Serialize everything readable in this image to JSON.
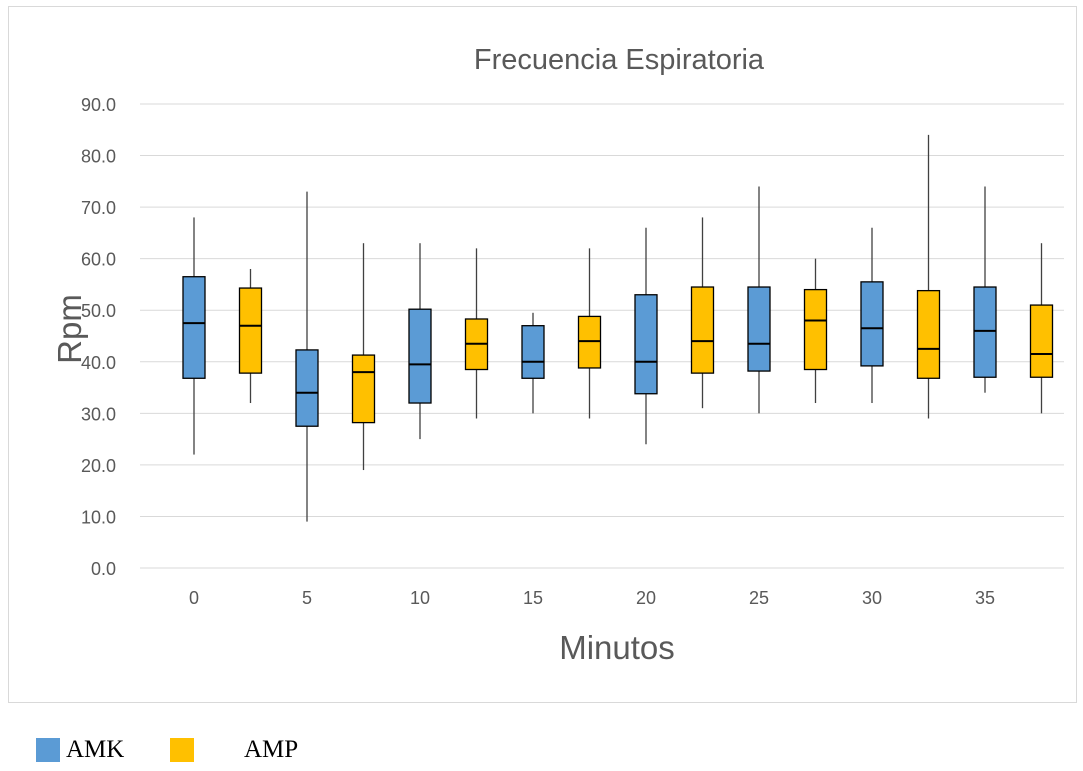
{
  "chart_data": {
    "type": "boxplot",
    "title": "Frecuencia Espiratoria",
    "xlabel": "Minutos",
    "ylabel": "Rpm",
    "ylim": [
      0,
      90
    ],
    "yticks": [
      "0.0",
      "10.0",
      "20.0",
      "30.0",
      "40.0",
      "50.0",
      "60.0",
      "70.0",
      "80.0",
      "90.0"
    ],
    "xticks": [
      "0",
      "5",
      "10",
      "15",
      "20",
      "25",
      "30",
      "35"
    ],
    "grid": "horizontal",
    "legend_position": "bottom-left",
    "series": [
      {
        "name": "AMK",
        "color": "#5b9bd5",
        "boxes": [
          {
            "x": "0",
            "min": 22,
            "q1": 36.8,
            "median": 47.5,
            "q3": 56.5,
            "max": 68
          },
          {
            "x": "5",
            "min": 9,
            "q1": 27.5,
            "median": 34,
            "q3": 42.3,
            "max": 73
          },
          {
            "x": "10",
            "min": 25,
            "q1": 32,
            "median": 39.5,
            "q3": 50.2,
            "max": 63
          },
          {
            "x": "15",
            "min": 30,
            "q1": 36.8,
            "median": 40,
            "q3": 47,
            "max": 49.5
          },
          {
            "x": "20",
            "min": 24,
            "q1": 33.8,
            "median": 40,
            "q3": 53,
            "max": 66
          },
          {
            "x": "25",
            "min": 30,
            "q1": 38.2,
            "median": 43.5,
            "q3": 54.5,
            "max": 74
          },
          {
            "x": "30",
            "min": 32,
            "q1": 39.2,
            "median": 46.5,
            "q3": 55.5,
            "max": 66
          },
          {
            "x": "35",
            "min": 34,
            "q1": 37,
            "median": 46,
            "q3": 54.5,
            "max": 74
          }
        ]
      },
      {
        "name": "AMP",
        "color": "#ffc000",
        "boxes": [
          {
            "x": "0",
            "min": 32,
            "q1": 37.8,
            "median": 47,
            "q3": 54.3,
            "max": 58
          },
          {
            "x": "5",
            "min": 19,
            "q1": 28.2,
            "median": 38,
            "q3": 41.3,
            "max": 63
          },
          {
            "x": "10",
            "min": 29,
            "q1": 38.5,
            "median": 43.5,
            "q3": 48.3,
            "max": 62
          },
          {
            "x": "15",
            "min": 29,
            "q1": 38.8,
            "median": 44,
            "q3": 48.8,
            "max": 62
          },
          {
            "x": "20",
            "min": 31,
            "q1": 37.8,
            "median": 44,
            "q3": 54.5,
            "max": 68
          },
          {
            "x": "25",
            "min": 32,
            "q1": 38.5,
            "median": 48,
            "q3": 54,
            "max": 60
          },
          {
            "x": "30",
            "min": 29,
            "q1": 36.8,
            "median": 42.5,
            "q3": 53.8,
            "max": 84
          },
          {
            "x": "35",
            "min": 30,
            "q1": 37,
            "median": 41.5,
            "q3": 51,
            "max": 63
          }
        ]
      }
    ]
  },
  "legend": {
    "items": [
      {
        "label": "AMK",
        "color": "#5b9bd5"
      },
      {
        "label": "AMP",
        "color": "#ffc000"
      }
    ]
  }
}
